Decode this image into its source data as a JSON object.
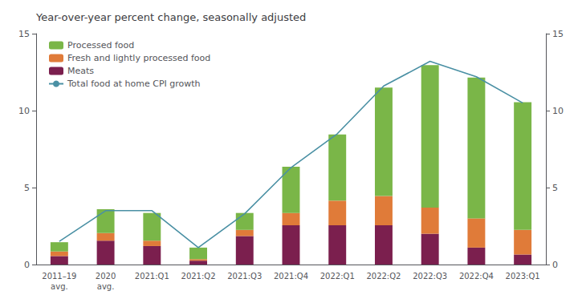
{
  "chart_data": {
    "type": "bar",
    "title": "Year-over-year percent change, seasonally adjusted",
    "categories": [
      "2011–19\navg.",
      "2020\navg.",
      "2021:Q1",
      "2021:Q2",
      "2021:Q3",
      "2021:Q4",
      "2022:Q1",
      "2022:Q2",
      "2022:Q3",
      "2022:Q4",
      "2023:Q1"
    ],
    "stacked": true,
    "series": [
      {
        "name": "Meats",
        "type": "bar",
        "color": "#7b1f4e",
        "values": [
          0.55,
          1.55,
          1.2,
          0.25,
          1.85,
          2.55,
          2.55,
          2.55,
          2.0,
          1.1,
          0.65
        ]
      },
      {
        "name": "Fresh and lightly processed food",
        "type": "bar",
        "color": "#e07b39",
        "values": [
          0.3,
          0.5,
          0.35,
          0.1,
          0.4,
          0.8,
          1.6,
          1.9,
          1.7,
          1.9,
          1.6
        ]
      },
      {
        "name": "Processed food",
        "type": "bar",
        "color": "#7ab648",
        "values": [
          0.6,
          1.55,
          1.8,
          0.75,
          1.1,
          3.0,
          4.3,
          7.05,
          9.25,
          9.15,
          8.3
        ]
      },
      {
        "name": "Total food at home CPI growth",
        "type": "line",
        "color": "#4a90a4",
        "values": [
          1.5,
          3.5,
          3.5,
          1.1,
          3.3,
          6.3,
          8.5,
          11.6,
          13.2,
          12.2,
          10.5
        ]
      }
    ],
    "ylim": [
      0,
      15
    ],
    "yticks": [
      0,
      5,
      10,
      15
    ],
    "y2lim": [
      0,
      15
    ],
    "y2ticks": [
      0,
      5,
      10,
      15
    ],
    "grid": false,
    "legend": "upper left"
  }
}
